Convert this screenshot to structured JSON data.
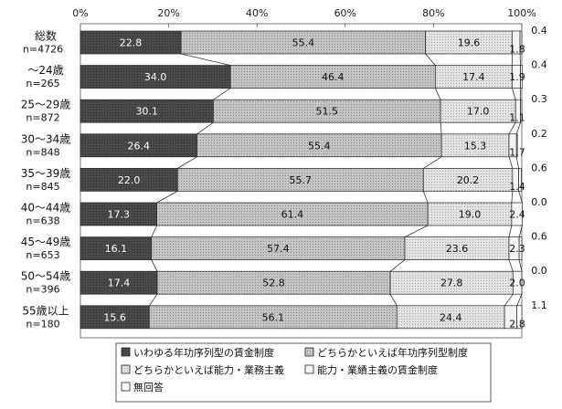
{
  "chart_data": {
    "type": "bar",
    "orientation": "horizontal",
    "stacked": true,
    "percent": true,
    "xlim": [
      0,
      100
    ],
    "x_ticks": [
      "0%",
      "20%",
      "40%",
      "60%",
      "80%",
      "100%"
    ],
    "grid": false,
    "connector_lines": true,
    "legend_position": "bottom",
    "categories": [
      {
        "label": "総数",
        "n": "n=4726"
      },
      {
        "label": "～24歳",
        "n": "n=265"
      },
      {
        "label": "25～29歳",
        "n": "n=872"
      },
      {
        "label": "30～34歳",
        "n": "n=848"
      },
      {
        "label": "35～39歳",
        "n": "n=845"
      },
      {
        "label": "40～44歳",
        "n": "n=638"
      },
      {
        "label": "45～49歳",
        "n": "n=653"
      },
      {
        "label": "50～54歳",
        "n": "n=396"
      },
      {
        "label": "55歳以上",
        "n": "n=180"
      }
    ],
    "series": [
      {
        "name": "いわゆる年功序列型の賃金制度",
        "color": "#4d4d4d",
        "values": [
          22.8,
          34.0,
          30.1,
          26.4,
          22.0,
          17.3,
          16.1,
          17.4,
          15.6
        ],
        "labels": [
          "22.8",
          "34.0",
          "30.1",
          "26.4",
          "22.0",
          "17.3",
          "16.1",
          "17.4",
          "15.6"
        ]
      },
      {
        "name": "どちらかといえば年功序列型制度",
        "color": "#bdbdbd",
        "values": [
          55.4,
          46.4,
          51.5,
          55.4,
          55.7,
          61.4,
          57.4,
          52.8,
          56.1
        ],
        "labels": [
          "55.4",
          "46.4",
          "51.5",
          "55.4",
          "55.7",
          "61.4",
          "57.4",
          "52.8",
          "56.1"
        ]
      },
      {
        "name": "どちらかといえば能力・業務主義",
        "color": "#dcdcdc",
        "values": [
          19.6,
          17.4,
          17.0,
          15.3,
          20.2,
          19.0,
          23.6,
          27.8,
          24.4
        ],
        "labels": [
          "19.6",
          "17.4",
          "17.0",
          "15.3",
          "20.2",
          "19.0",
          "23.6",
          "27.8",
          "24.4"
        ]
      },
      {
        "name": "能力・業績主義の賃金制度",
        "color": "#f4f4f4",
        "values": [
          1.8,
          1.9,
          1.1,
          1.7,
          1.4,
          2.4,
          2.3,
          2.0,
          2.8
        ],
        "labels": [
          "1.8",
          "1.9",
          "1.1",
          "1.7",
          "1.4",
          "2.4",
          "2.3",
          "2.0",
          "2.8"
        ]
      },
      {
        "name": "無回答",
        "color": "#ffffff",
        "values": [
          0.4,
          0.4,
          0.3,
          0.2,
          0.6,
          0.0,
          0.6,
          0.0,
          1.1
        ],
        "labels": [
          "0.4",
          "0.4",
          "0.3",
          "0.2",
          "0.6",
          "0.0",
          "0.6",
          "0.0",
          "1.1"
        ]
      }
    ]
  }
}
